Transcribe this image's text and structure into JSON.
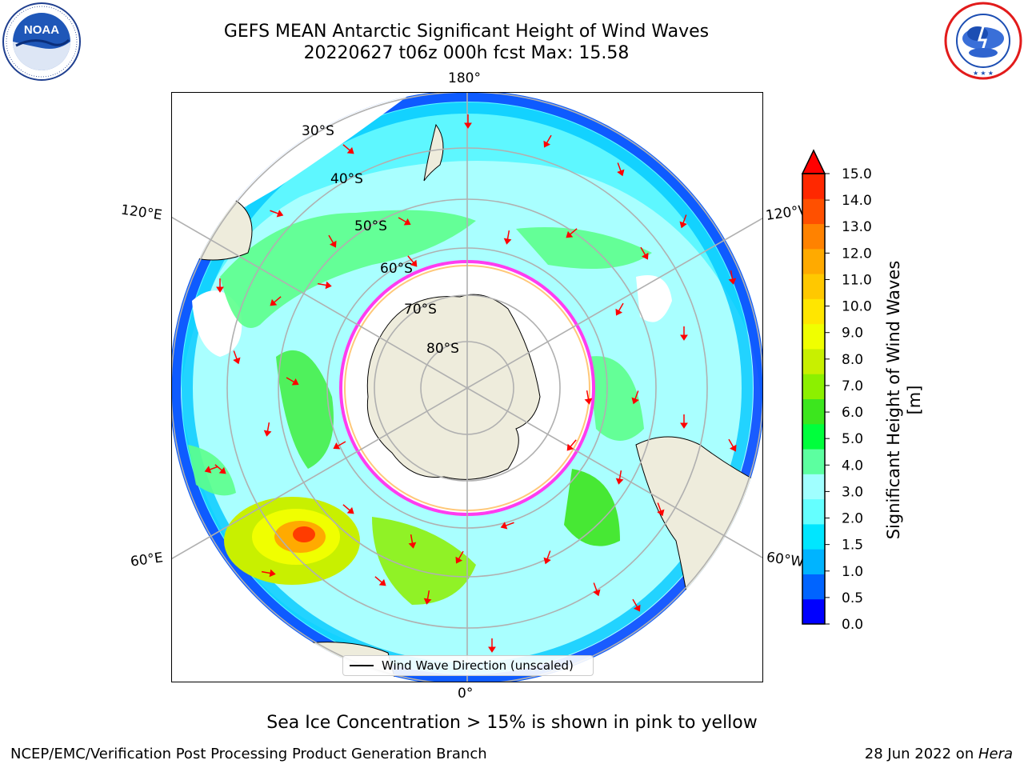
{
  "header": {
    "title_line1": "GEFS MEAN Antarctic Significant Height of Wind Waves",
    "title_line2": "20220627 t06z 000h fcst   Max: 15.58"
  },
  "logos": {
    "left": {
      "text": "NOAA",
      "ring_text": "NATIONAL OCEANIC AND ATMOSPHERIC ADMINISTRATION · U.S. DEPARTMENT OF COMMERCE"
    },
    "right": {
      "ring_text": "NATIONAL WEATHER SERVICE"
    }
  },
  "map": {
    "meridian_labels": {
      "top": "180°",
      "bottom": "0°",
      "upper_left": "120°E",
      "upper_right": "120°W",
      "lower_left": "60°E",
      "lower_right": "60°W"
    },
    "latitude_labels": [
      "30°S",
      "40°S",
      "50°S",
      "60°S",
      "70°S",
      "80°S"
    ],
    "legend_text": "Wind Wave Direction (unscaled)"
  },
  "colorbar": {
    "title": "Significant Height of Wind Waves [m]",
    "ticks": [
      "15.0",
      "14.0",
      "13.0",
      "12.0",
      "11.0",
      "10.0",
      "9.0",
      "8.0",
      "7.0",
      "6.0",
      "5.0",
      "4.0",
      "3.0",
      "2.0",
      "1.5",
      "1.0",
      "0.5",
      "0.0"
    ],
    "colors": [
      "#0000ff",
      "#0064ff",
      "#00b4ff",
      "#00e6ff",
      "#64ffff",
      "#a0ffff",
      "#5cffa0",
      "#00ff3c",
      "#3ce61e",
      "#8cf000",
      "#c8f000",
      "#f0ff00",
      "#ffe600",
      "#ffc800",
      "#ffaa00",
      "#ff8200",
      "#ff5000",
      "#ff2800"
    ]
  },
  "footer": {
    "note": "Sea Ice Concentration > 15% is shown in pink to yellow",
    "left": "NCEP/EMC/Verification Post Processing Product Generation Branch",
    "right_prefix": "28 Jun 2022 on ",
    "right_host": "Hera"
  }
}
